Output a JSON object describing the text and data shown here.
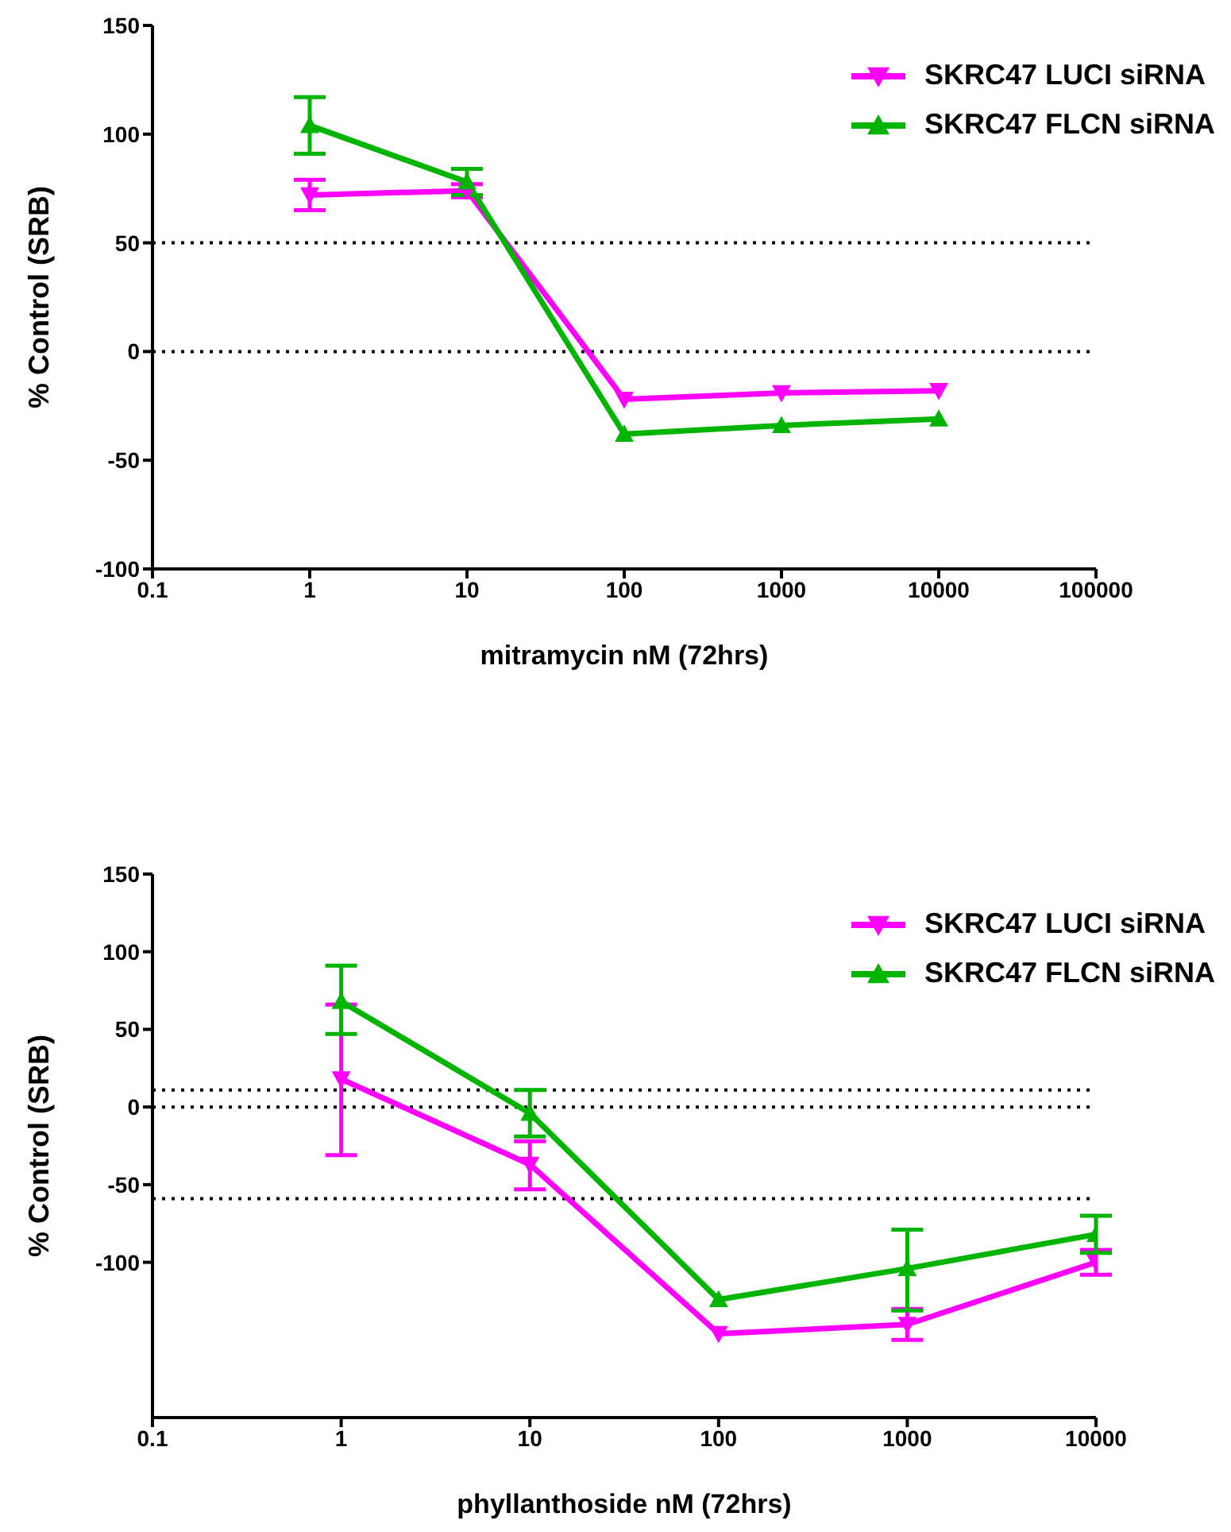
{
  "chart_data": [
    {
      "type": "line",
      "xlabel": "mitramycin  nM  (72hrs)",
      "ylabel": "% Control (SRB)",
      "log": "x",
      "x": [
        1,
        10,
        100,
        1000,
        10000
      ],
      "xlim": [
        0.1,
        100000
      ],
      "xticks": [
        0.1,
        1,
        10,
        100,
        1000,
        10000,
        100000
      ],
      "ylim": [
        -100,
        150
      ],
      "yticks": [
        -100,
        -50,
        0,
        50,
        100,
        150
      ],
      "grid": false,
      "legend": "top right",
      "series": [
        {
          "name": "SKRC47 LUCI siRNA",
          "color": "#ff00ff",
          "marker": "triangle_down",
          "values": [
            72,
            74,
            -22,
            -19,
            -18
          ],
          "errors": [
            7,
            3,
            null,
            null,
            null
          ]
        },
        {
          "name": "SKRC47 FLCN siRNA",
          "color": "#00b400",
          "marker": "triangle",
          "values": [
            104,
            78,
            -38,
            -34,
            -31
          ],
          "errors": [
            13,
            6,
            null,
            null,
            null
          ]
        }
      ],
      "ref_lines": [
        {
          "axis": "y",
          "value": 50,
          "line_style": "dotted"
        },
        {
          "axis": "y",
          "value": 0,
          "line_style": "dotted"
        }
      ]
    },
    {
      "type": "line",
      "xlabel": "phyllanthoside  nM  (72hrs)",
      "ylabel": "% Control (SRB)",
      "log": "x",
      "x": [
        1,
        10,
        100,
        1000,
        10000
      ],
      "xlim": [
        0.1,
        10000
      ],
      "xticks": [
        0.1,
        1,
        10,
        100,
        1000,
        10000
      ],
      "ylim": [
        -200,
        150
      ],
      "yticks": [
        -100,
        -50,
        0,
        50,
        100,
        150
      ],
      "grid": false,
      "legend": "top right",
      "series": [
        {
          "name": "SKRC47 LUCI siRNA",
          "color": "#ff00ff",
          "marker": "triangle_down",
          "values": [
            18,
            -37,
            -146,
            -140,
            -100
          ],
          "errors": [
            [
              -31,
              66
            ],
            [
              -53,
              -22
            ],
            null,
            10,
            8
          ]
        },
        {
          "name": "SKRC47 FLCN siRNA",
          "color": "#00b400",
          "marker": "triangle",
          "values": [
            68,
            -4,
            -124,
            -104,
            -82
          ],
          "errors": [
            [
              47,
              91
            ],
            15,
            null,
            [
              -131,
              -79
            ],
            12
          ]
        }
      ],
      "ref_lines": [
        {
          "axis": "y",
          "value": 11,
          "line_style": "dotted"
        },
        {
          "axis": "y",
          "value": 0,
          "line_style": "dotted"
        },
        {
          "axis": "y",
          "value": -59,
          "line_style": "dotted"
        }
      ]
    }
  ]
}
